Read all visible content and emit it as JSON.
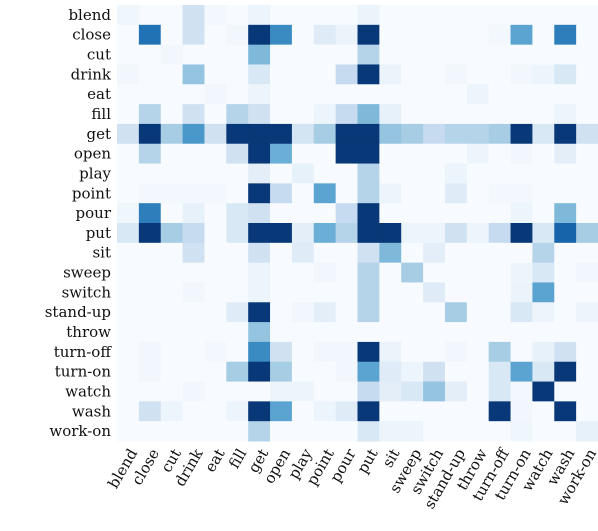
{
  "chart_data": {
    "type": "heatmap",
    "title": "",
    "xlabel": "",
    "ylabel": "",
    "row_labels": [
      "blend",
      "close",
      "cut",
      "drink",
      "eat",
      "fill",
      "get",
      "open",
      "play",
      "point",
      "pour",
      "put",
      "sit",
      "sweep",
      "switch",
      "stand-up",
      "throw",
      "turn-off",
      "turn-on",
      "watch",
      "wash",
      "work-on"
    ],
    "col_labels": [
      "blend",
      "close",
      "cut",
      "drink",
      "eat",
      "fill",
      "get",
      "open",
      "play",
      "point",
      "pour",
      "put",
      "sit",
      "sweep",
      "switch",
      "stand-up",
      "throw",
      "turn-off",
      "turn-on",
      "watch",
      "wash",
      "work-on"
    ],
    "value_range": [
      0,
      1
    ],
    "colormap": [
      "#f7fbff",
      "#deebf7",
      "#c6dbef",
      "#9ecae1",
      "#6baed6",
      "#4292c6",
      "#2171b5",
      "#08519c",
      "#08306b"
    ],
    "values": [
      [
        0.04,
        0.0,
        0.0,
        0.2,
        0.02,
        0.0,
        0.05,
        0.0,
        0.0,
        0.0,
        0.0,
        0.06,
        0.0,
        0.0,
        0.0,
        0.0,
        0.0,
        0.0,
        0.0,
        0.0,
        0.0,
        0.0
      ],
      [
        0.0,
        0.75,
        0.0,
        0.2,
        0.0,
        0.03,
        0.97,
        0.65,
        0.0,
        0.12,
        0.06,
        0.97,
        0.0,
        0.0,
        0.0,
        0.0,
        0.0,
        0.02,
        0.55,
        0.0,
        0.7,
        0.0
      ],
      [
        0.0,
        0.0,
        0.03,
        0.0,
        0.0,
        0.0,
        0.45,
        0.0,
        0.0,
        0.0,
        0.0,
        0.3,
        0.0,
        0.0,
        0.0,
        0.0,
        0.0,
        0.0,
        0.0,
        0.0,
        0.0,
        0.0
      ],
      [
        0.03,
        0.0,
        0.0,
        0.4,
        0.0,
        0.0,
        0.15,
        0.0,
        0.0,
        0.0,
        0.25,
        0.97,
        0.06,
        0.0,
        0.0,
        0.03,
        0.0,
        0.0,
        0.03,
        0.05,
        0.15,
        0.0
      ],
      [
        0.0,
        0.0,
        0.0,
        0.0,
        0.03,
        0.0,
        0.05,
        0.0,
        0.0,
        0.0,
        0.0,
        0.0,
        0.0,
        0.0,
        0.0,
        0.0,
        0.05,
        0.0,
        0.0,
        0.0,
        0.0,
        0.0
      ],
      [
        0.0,
        0.3,
        0.0,
        0.2,
        0.0,
        0.3,
        0.2,
        0.0,
        0.0,
        0.05,
        0.25,
        0.45,
        0.08,
        0.0,
        0.0,
        0.0,
        0.0,
        0.0,
        0.0,
        0.0,
        0.05,
        0.0
      ],
      [
        0.2,
        0.97,
        0.35,
        0.6,
        0.2,
        0.97,
        0.97,
        0.97,
        0.18,
        0.35,
        0.97,
        0.97,
        0.4,
        0.35,
        0.25,
        0.3,
        0.3,
        0.35,
        0.97,
        0.15,
        0.97,
        0.2
      ],
      [
        0.0,
        0.3,
        0.0,
        0.0,
        0.0,
        0.2,
        0.97,
        0.5,
        0.0,
        0.0,
        0.97,
        0.97,
        0.0,
        0.0,
        0.0,
        0.0,
        0.05,
        0.0,
        0.03,
        0.0,
        0.1,
        0.0
      ],
      [
        0.0,
        0.0,
        0.0,
        0.0,
        0.0,
        0.0,
        0.1,
        0.0,
        0.08,
        0.0,
        0.0,
        0.3,
        0.0,
        0.0,
        0.0,
        0.05,
        0.0,
        0.0,
        0.0,
        0.0,
        0.0,
        0.0
      ],
      [
        0.0,
        0.02,
        0.02,
        0.02,
        0.02,
        0.0,
        0.97,
        0.25,
        0.0,
        0.55,
        0.0,
        0.3,
        0.05,
        0.0,
        0.0,
        0.12,
        0.0,
        0.02,
        0.02,
        0.0,
        0.0,
        0.0
      ],
      [
        0.04,
        0.7,
        0.0,
        0.08,
        0.0,
        0.15,
        0.2,
        0.0,
        0.0,
        0.0,
        0.25,
        0.97,
        0.0,
        0.0,
        0.0,
        0.0,
        0.0,
        0.0,
        0.05,
        0.0,
        0.45,
        0.0
      ],
      [
        0.15,
        0.97,
        0.35,
        0.25,
        0.0,
        0.15,
        0.97,
        0.97,
        0.1,
        0.5,
        0.3,
        0.97,
        0.97,
        0.05,
        0.05,
        0.2,
        0.05,
        0.25,
        0.97,
        0.15,
        0.8,
        0.35
      ],
      [
        0.0,
        0.0,
        0.0,
        0.2,
        0.0,
        0.0,
        0.2,
        0.0,
        0.12,
        0.0,
        0.0,
        0.2,
        0.45,
        0.0,
        0.1,
        0.0,
        0.0,
        0.0,
        0.0,
        0.3,
        0.0,
        0.0
      ],
      [
        0.0,
        0.0,
        0.0,
        0.0,
        0.0,
        0.0,
        0.05,
        0.0,
        0.0,
        0.03,
        0.0,
        0.3,
        0.0,
        0.35,
        0.0,
        0.0,
        0.0,
        0.0,
        0.05,
        0.15,
        0.0,
        0.03
      ],
      [
        0.0,
        0.0,
        0.0,
        0.03,
        0.0,
        0.0,
        0.05,
        0.0,
        0.0,
        0.0,
        0.0,
        0.3,
        0.0,
        0.0,
        0.12,
        0.0,
        0.0,
        0.0,
        0.06,
        0.55,
        0.0,
        0.0
      ],
      [
        0.0,
        0.0,
        0.0,
        0.0,
        0.0,
        0.12,
        0.97,
        0.0,
        0.03,
        0.1,
        0.0,
        0.3,
        0.0,
        0.0,
        0.0,
        0.35,
        0.0,
        0.0,
        0.15,
        0.05,
        0.0,
        0.05
      ],
      [
        0.0,
        0.0,
        0.0,
        0.0,
        0.0,
        0.0,
        0.4,
        0.0,
        0.0,
        0.0,
        0.0,
        0.0,
        0.0,
        0.0,
        0.0,
        0.0,
        0.0,
        0.0,
        0.0,
        0.0,
        0.0,
        0.0
      ],
      [
        0.0,
        0.03,
        0.0,
        0.0,
        0.02,
        0.0,
        0.65,
        0.2,
        0.0,
        0.03,
        0.03,
        0.97,
        0.06,
        0.0,
        0.0,
        0.03,
        0.0,
        0.35,
        0.0,
        0.08,
        0.2,
        0.0
      ],
      [
        0.0,
        0.03,
        0.0,
        0.0,
        0.0,
        0.35,
        0.97,
        0.35,
        0.0,
        0.0,
        0.03,
        0.55,
        0.12,
        0.05,
        0.2,
        0.0,
        0.0,
        0.15,
        0.55,
        0.15,
        0.97,
        0.0
      ],
      [
        0.0,
        0.0,
        0.0,
        0.03,
        0.0,
        0.0,
        0.0,
        0.05,
        0.05,
        0.0,
        0.0,
        0.25,
        0.1,
        0.15,
        0.4,
        0.1,
        0.0,
        0.15,
        0.02,
        0.97,
        0.0,
        0.0
      ],
      [
        0.0,
        0.2,
        0.05,
        0.0,
        0.0,
        0.05,
        0.97,
        0.55,
        0.0,
        0.05,
        0.12,
        0.97,
        0.0,
        0.0,
        0.0,
        0.0,
        0.0,
        0.97,
        0.03,
        0.0,
        0.97,
        0.0
      ],
      [
        0.0,
        0.0,
        0.0,
        0.0,
        0.0,
        0.0,
        0.3,
        0.0,
        0.0,
        0.0,
        0.0,
        0.15,
        0.05,
        0.05,
        0.0,
        0.0,
        0.0,
        0.0,
        0.04,
        0.0,
        0.0,
        0.08
      ]
    ],
    "legend": "none",
    "grid": false
  }
}
